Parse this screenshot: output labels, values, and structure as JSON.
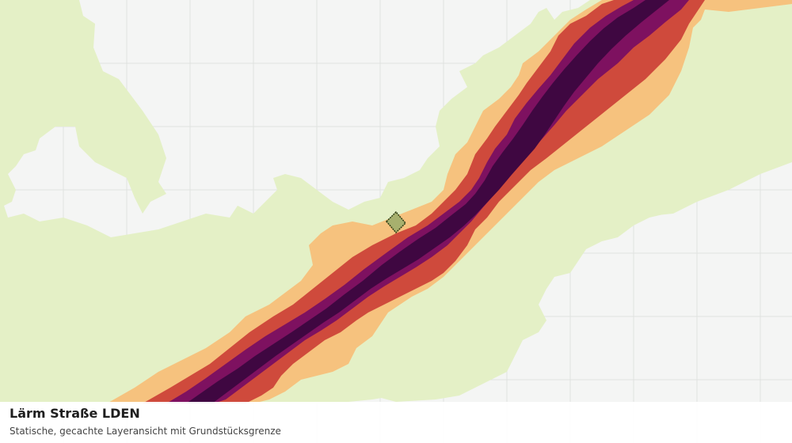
{
  "map": {
    "layer_colors": {
      "background": "#f4f5f4",
      "grid": "#e0e2e0",
      "zone_lowest": "#e4f0c6",
      "zone_low": "#f6c27e",
      "zone_mid": "#cf4a3c",
      "zone_high": "#7e1160",
      "zone_highest": "#3f0741",
      "parcel_fill": "#a7b06e",
      "parcel_stroke": "#2c3b12"
    }
  },
  "caption": {
    "title": "Lärm Straße LDEN",
    "subtitle": "Statische, gecachte Layeransicht mit Grundstücksgrenze"
  }
}
